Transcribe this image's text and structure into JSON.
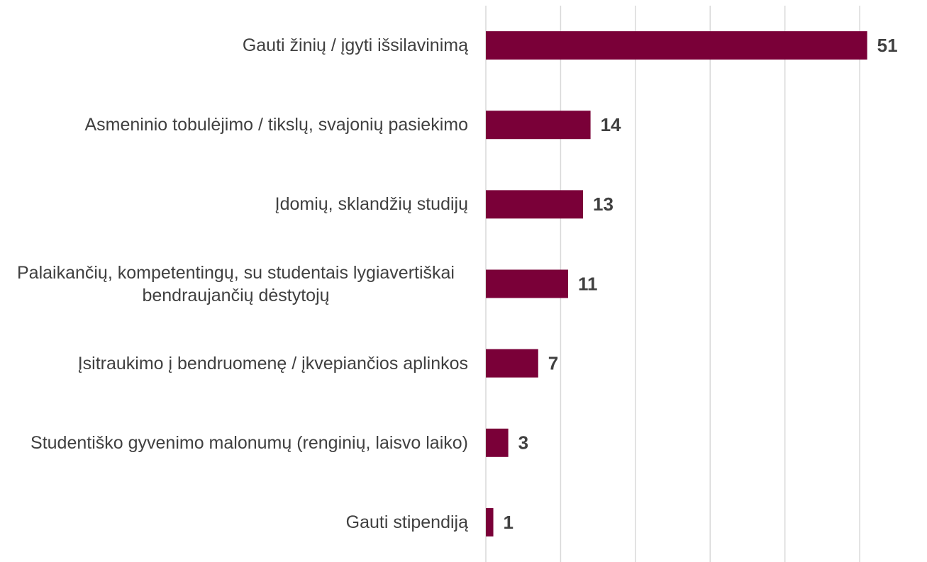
{
  "chart_data": {
    "type": "bar",
    "orientation": "horizontal",
    "categories": [
      "Gauti žinių / įgyti išsilavinimą",
      "Asmeninio tobulėjimo / tikslų, svajonių pasiekimo",
      "Įdomių, sklandžių studijų",
      "Palaikančių, kompetentingų, su studentais lygiavertiškai bendraujančių dėstytojų",
      "Įsitraukimo į bendruomenę / įkvepiančios aplinkos",
      "Studentiško gyvenimo malonumų (renginių, laisvo laiko)",
      "Gauti stipendiją"
    ],
    "values": [
      51,
      14,
      13,
      11,
      7,
      3,
      1
    ],
    "color": "#7a0038",
    "xlim": [
      0,
      59
    ],
    "xticks": [
      0,
      10,
      20,
      30,
      40,
      50
    ],
    "grid": true
  }
}
